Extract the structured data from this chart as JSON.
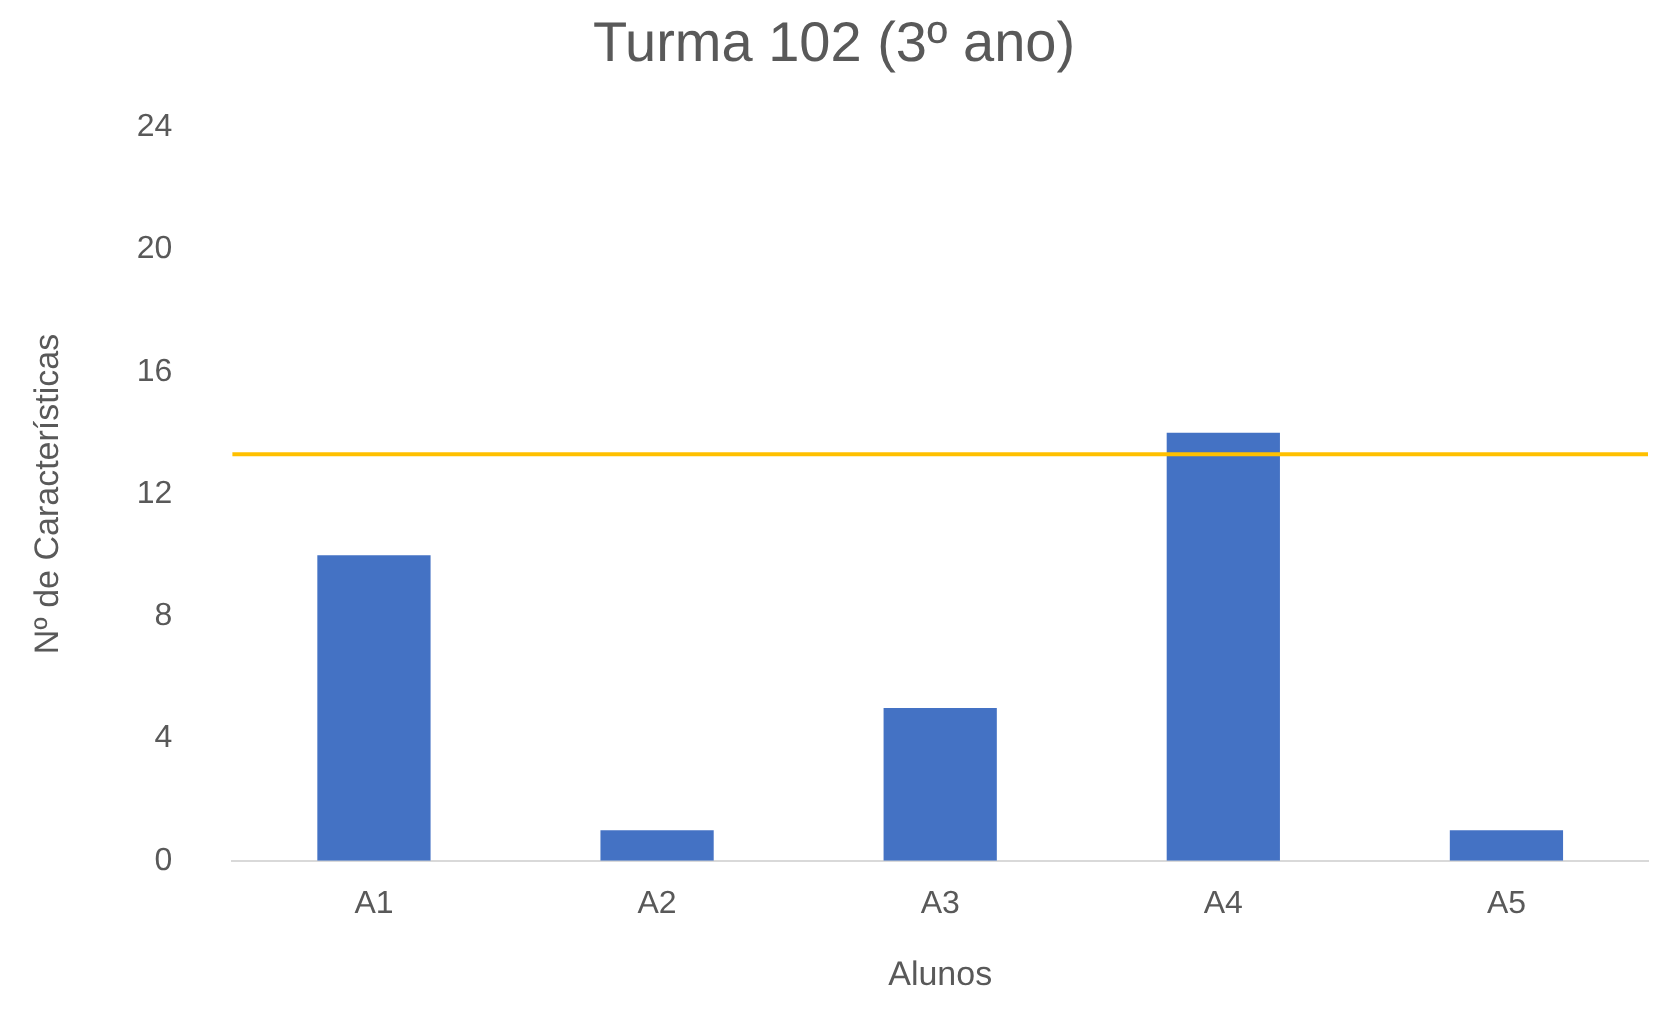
{
  "chart_data": {
    "type": "bar",
    "title": "Turma 102 (3º ano)",
    "xlabel": "Alunos",
    "ylabel": "Nº de Características",
    "categories": [
      "A1",
      "A2",
      "A3",
      "A4",
      "A5"
    ],
    "values": [
      10,
      1,
      5,
      14,
      1
    ],
    "color": "#4472c4",
    "ylim": [
      0,
      24
    ],
    "yticks": [
      0,
      4,
      8,
      12,
      16,
      20,
      24
    ],
    "grid": false,
    "ref_lines": [
      {
        "axis": "y",
        "value": 13.3,
        "color": "#ffc000"
      }
    ]
  }
}
